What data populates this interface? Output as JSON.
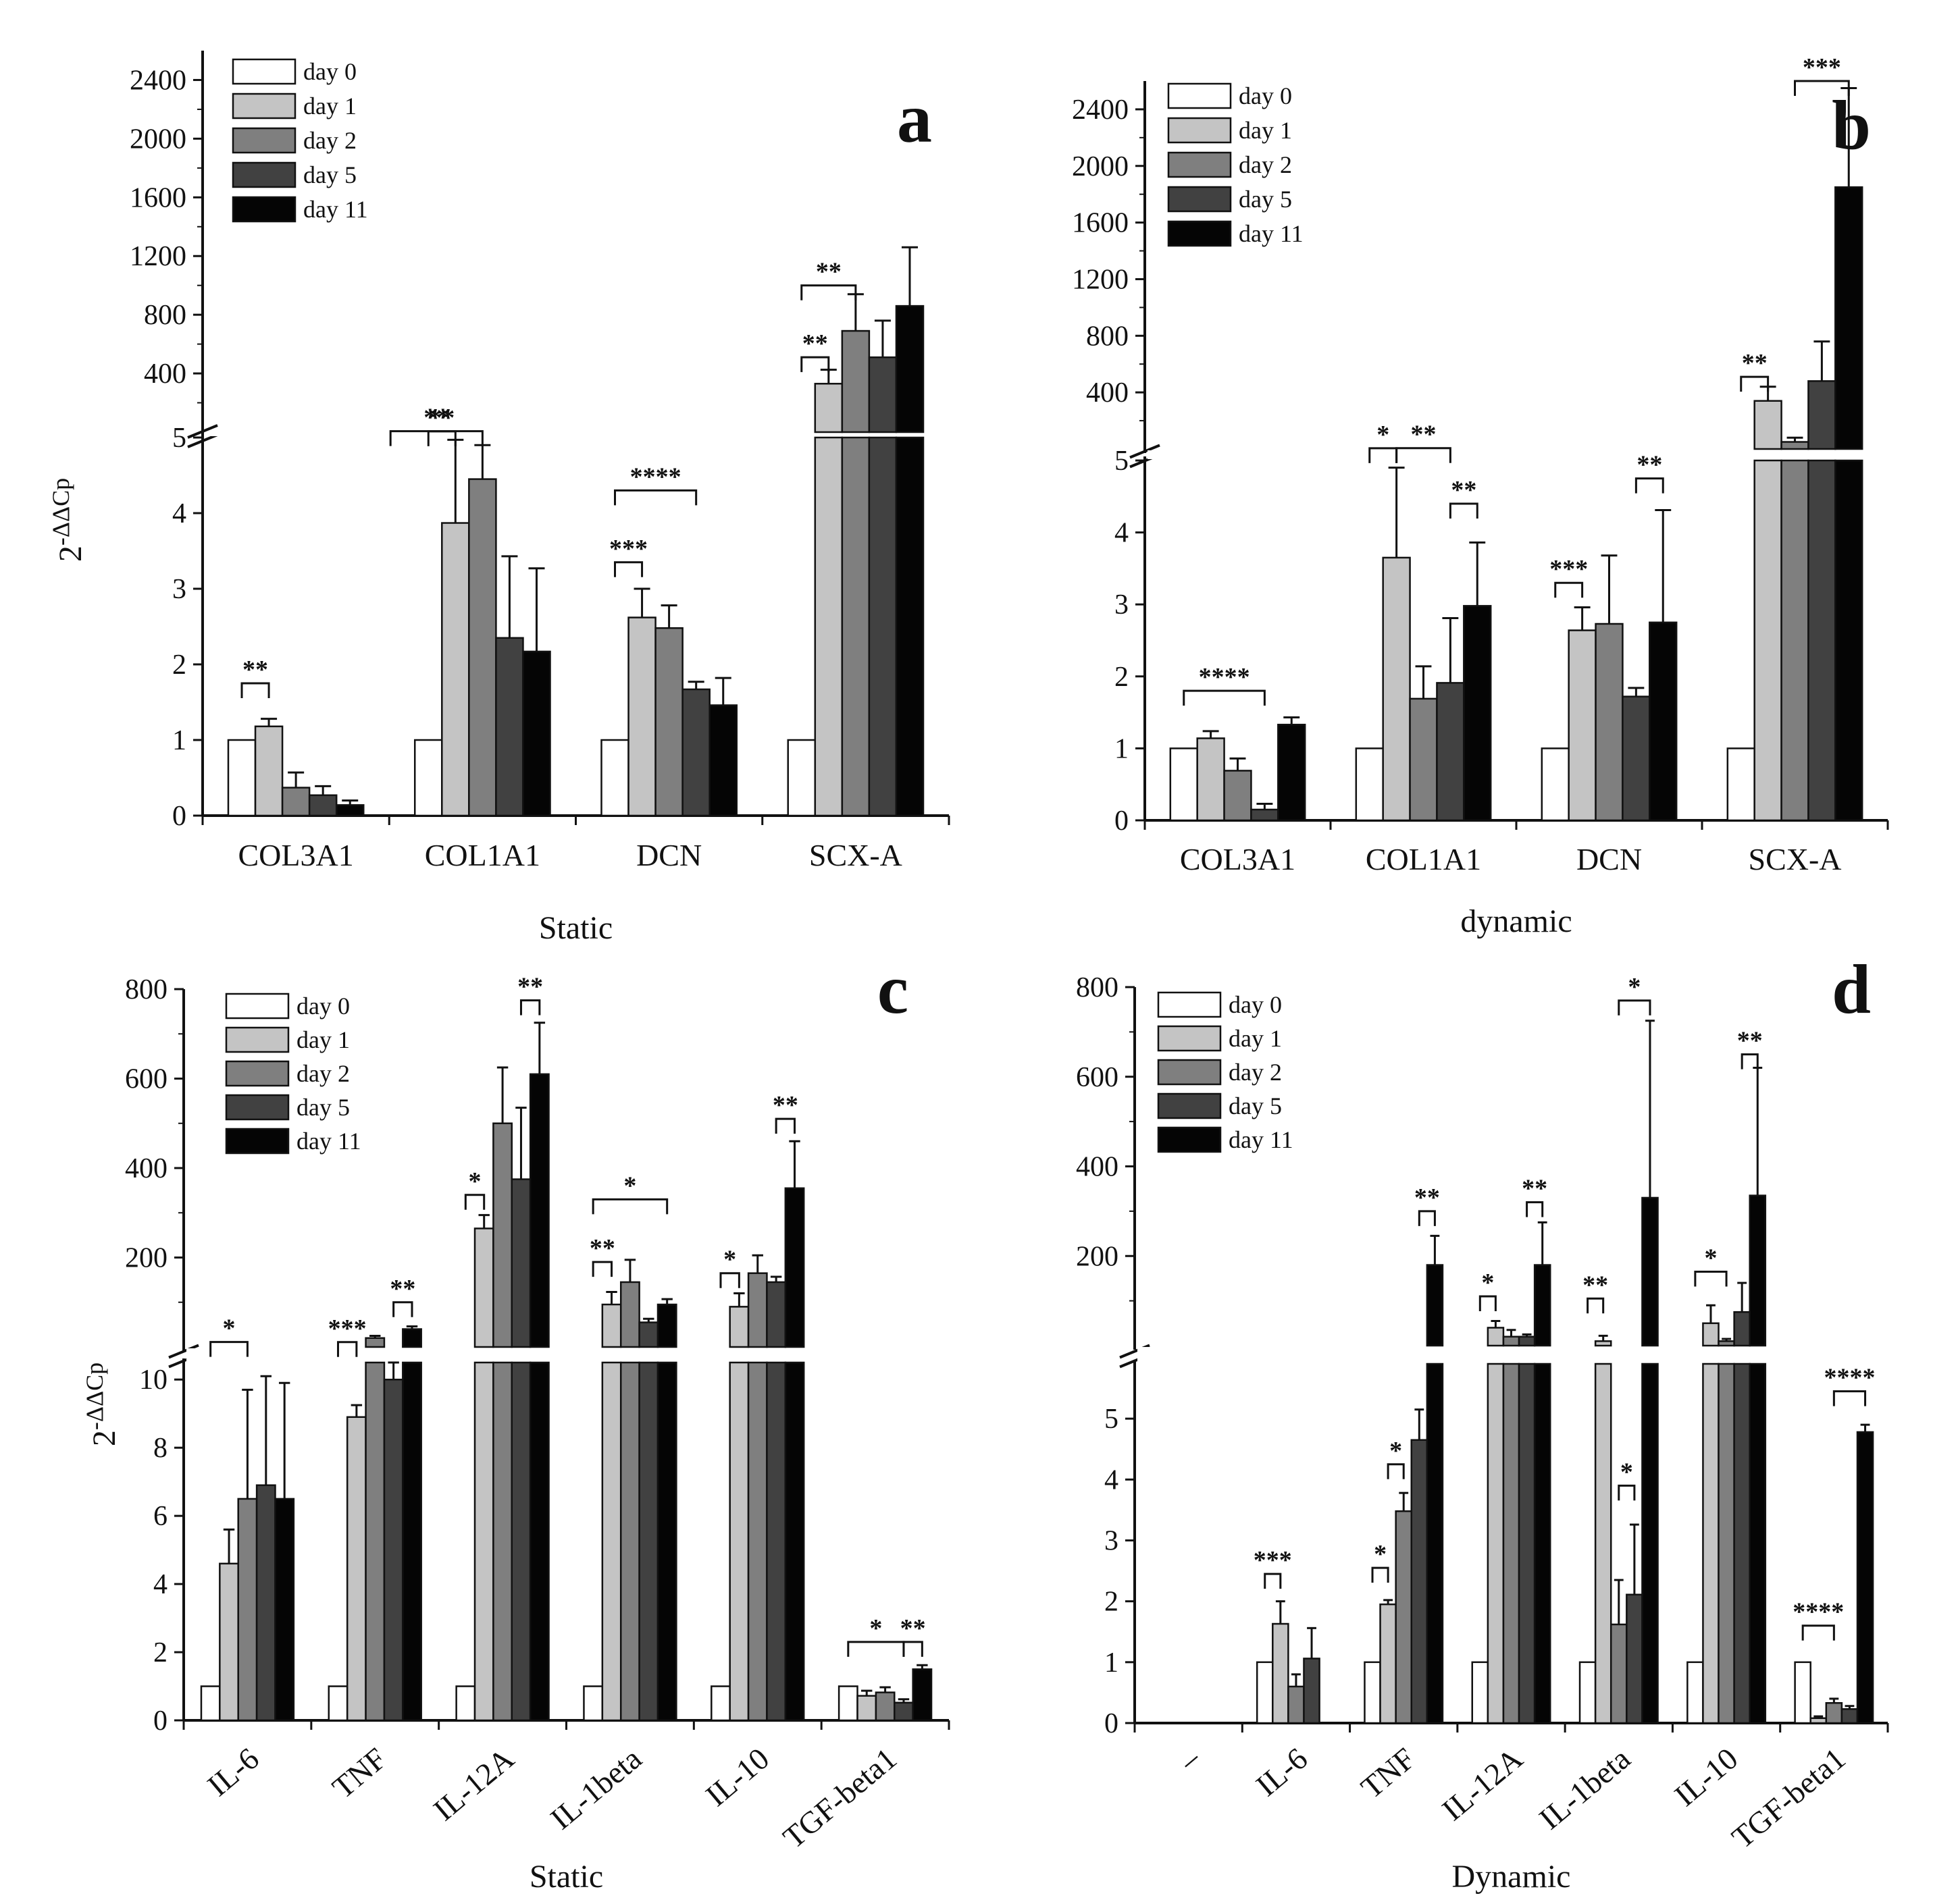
{
  "colors": {
    "day 0": "#ffffff",
    "day 1": "#c4c4c4",
    "day 2": "#7f7f7f",
    "day 5": "#414141",
    "day 11": "#050505"
  },
  "chart_data": [
    {
      "panel": "a",
      "type": "bar",
      "title": "",
      "xlabel": "Static",
      "ylabel": "2-ΔΔCp",
      "ylabel_base": "2",
      "ylabel_exp": "-ΔΔCp",
      "legend": [
        "day 0",
        "day 1",
        "day 2",
        "day 5",
        "day 11"
      ],
      "categories": [
        "COL3A1",
        "COL1A1",
        "DCN",
        "SCX-A"
      ],
      "lower_axis": {
        "ylim": [
          0,
          5
        ],
        "ticks": [
          0,
          1,
          2,
          3,
          4,
          5
        ]
      },
      "upper_axis": {
        "ylim": [
          0,
          2600
        ],
        "ticks": [
          400,
          800,
          1200,
          1600,
          2000,
          2400
        ]
      },
      "series": [
        {
          "name": "day 0",
          "values": [
            1,
            1,
            1,
            1
          ],
          "errors": [
            0,
            0,
            0,
            0
          ]
        },
        {
          "name": "day 1",
          "values": [
            1.18,
            3.87,
            2.62,
            330
          ],
          "errors": [
            0.1,
            1.1,
            0.38,
            95
          ]
        },
        {
          "name": "day 2",
          "values": [
            0.37,
            4.45,
            2.48,
            690
          ],
          "errors": [
            0.2,
            0.45,
            0.3,
            250
          ]
        },
        {
          "name": "day 5",
          "values": [
            0.27,
            2.35,
            1.67,
            510
          ],
          "errors": [
            0.12,
            1.08,
            0.1,
            250
          ]
        },
        {
          "name": "day 11",
          "values": [
            0.14,
            2.17,
            1.46,
            860
          ],
          "errors": [
            0.06,
            1.1,
            0.36,
            400
          ]
        }
      ],
      "significance": [
        {
          "label": "**",
          "category": "COL3A1",
          "from": 0,
          "to": 1,
          "value": 1.75
        },
        {
          "label": "**",
          "category": "COL1A1",
          "from": 0,
          "to": 1,
          "value": 5.3
        },
        {
          "label": "**",
          "category": "COL1A1",
          "from": -1,
          "to": 2,
          "value": 6.05
        },
        {
          "label": "***",
          "category": "DCN",
          "from": 0,
          "to": 1,
          "value": 3.35
        },
        {
          "label": "****",
          "category": "DCN",
          "from": 0,
          "to": 3,
          "value": 4.3
        },
        {
          "label": "**",
          "category": "SCX-A",
          "from": 0,
          "to": 1,
          "value": 510
        },
        {
          "label": "**",
          "category": "SCX-A",
          "from": 0,
          "to": 2,
          "value": 1000
        }
      ]
    },
    {
      "panel": "b",
      "type": "bar",
      "title": "",
      "xlabel": "dynamic",
      "ylabel": "2-ΔΔCp",
      "ylabel_base": "2",
      "ylabel_exp": "-ΔΔCp",
      "legend": [
        "day 0",
        "day 1",
        "day 2",
        "day 5",
        "day 11"
      ],
      "categories": [
        "COL3A1",
        "COL1A1",
        "DCN",
        "SCX-A"
      ],
      "lower_axis": {
        "ylim": [
          0,
          5
        ],
        "ticks": [
          0,
          1,
          2,
          3,
          4,
          5
        ]
      },
      "upper_axis": {
        "ylim": [
          0,
          2600
        ],
        "ticks": [
          400,
          800,
          1200,
          1600,
          2000,
          2400
        ]
      },
      "series": [
        {
          "name": "day 0",
          "values": [
            1,
            1,
            1,
            1
          ],
          "errors": [
            0,
            0,
            0,
            0
          ]
        },
        {
          "name": "day 1",
          "values": [
            1.14,
            3.65,
            2.64,
            340
          ],
          "errors": [
            0.1,
            1.25,
            0.32,
            100
          ]
        },
        {
          "name": "day 2",
          "values": [
            0.69,
            1.69,
            2.73,
            50
          ],
          "errors": [
            0.17,
            0.45,
            0.95,
            30
          ]
        },
        {
          "name": "day 5",
          "values": [
            0.15,
            1.91,
            1.72,
            480
          ],
          "errors": [
            0.08,
            0.9,
            0.12,
            280
          ]
        },
        {
          "name": "day 11",
          "values": [
            1.33,
            2.98,
            2.75,
            1850
          ],
          "errors": [
            0.1,
            0.88,
            1.56,
            700
          ]
        }
      ],
      "significance": [
        {
          "label": "****",
          "category": "COL3A1",
          "from": 0,
          "to": 3,
          "value": 1.8
        },
        {
          "label": "*",
          "category": "COL1A1",
          "from": 0,
          "to": 1,
          "value": 5.45
        },
        {
          "label": "**",
          "category": "COL1A1",
          "from": 1,
          "to": 3,
          "value": 6.1
        },
        {
          "label": "**",
          "category": "COL1A1",
          "from": 3,
          "to": 4,
          "value": 4.4
        },
        {
          "label": "***",
          "category": "DCN",
          "from": 0,
          "to": 1,
          "value": 3.3
        },
        {
          "label": "**",
          "category": "DCN",
          "from": 3,
          "to": 4,
          "value": 4.75
        },
        {
          "label": "**",
          "category": "SCX-A",
          "from": 0,
          "to": 1,
          "value": 510
        },
        {
          "label": "***",
          "category": "SCX-A",
          "from": 2,
          "to": 4,
          "value": 2660
        }
      ]
    },
    {
      "panel": "c",
      "type": "bar",
      "title": "",
      "xlabel": "Static",
      "ylabel": "2-ΔΔCp",
      "ylabel_base": "2",
      "ylabel_exp": "-ΔΔCp",
      "legend": [
        "day 0",
        "day 1",
        "day 2",
        "day 5",
        "day 11"
      ],
      "categories": [
        "IL-6",
        "TNF",
        "IL-12A",
        "IL-1beta",
        "IL-10",
        "TGF-beta1"
      ],
      "lower_axis": {
        "ylim": [
          0,
          10.5
        ],
        "ticks": [
          0,
          2,
          4,
          6,
          8,
          10
        ]
      },
      "upper_axis": {
        "ylim": [
          0,
          800
        ],
        "ticks": [
          200,
          400,
          600,
          800
        ]
      },
      "series": [
        {
          "name": "day 0",
          "values": [
            1,
            1,
            1,
            1,
            1,
            1
          ],
          "errors": [
            0,
            0,
            0,
            0,
            0,
            0
          ]
        },
        {
          "name": "day 1",
          "values": [
            4.6,
            8.9,
            265,
            95,
            90,
            0.72
          ],
          "errors": [
            1.0,
            0.35,
            30,
            28,
            30,
            0.15
          ]
        },
        {
          "name": "day 2",
          "values": [
            6.5,
            20,
            500,
            145,
            165,
            0.82
          ],
          "errors": [
            3.2,
            5,
            125,
            50,
            40,
            0.15
          ]
        },
        {
          "name": "day 5",
          "values": [
            6.9,
            10,
            375,
            55,
            145,
            0.52
          ],
          "errors": [
            3.2,
            3,
            160,
            8,
            12,
            0.1
          ]
        },
        {
          "name": "day 11",
          "values": [
            6.5,
            40,
            610,
            95,
            355,
            1.5
          ],
          "errors": [
            3.4,
            6,
            115,
            12,
            105,
            0.12
          ]
        }
      ],
      "significance": [
        {
          "label": "*",
          "category": "IL-6",
          "from": 0,
          "to": 2,
          "value": 11.1
        },
        {
          "label": "***",
          "category": "TNF",
          "from": 0,
          "to": 1,
          "value": 10.9
        },
        {
          "label": "**",
          "category": "TNF",
          "from": 3,
          "to": 4,
          "value": 100
        },
        {
          "label": "*",
          "category": "IL-12A",
          "from": 0,
          "to": 1,
          "value": 340
        },
        {
          "label": "**",
          "category": "IL-12A",
          "from": 3,
          "to": 4,
          "value": 775
        },
        {
          "label": "**",
          "category": "IL-1beta",
          "from": 0,
          "to": 1,
          "value": 190
        },
        {
          "label": "*",
          "category": "IL-1beta",
          "from": 0,
          "to": 4,
          "value": 330
        },
        {
          "label": "*",
          "category": "IL-10",
          "from": 0,
          "to": 1,
          "value": 165
        },
        {
          "label": "**",
          "category": "IL-10",
          "from": 3,
          "to": 4,
          "value": 510
        },
        {
          "label": "*",
          "category": "TGF-beta1",
          "from": 0,
          "to": 3,
          "value": 2.3
        },
        {
          "label": "**",
          "category": "TGF-beta1",
          "from": 3,
          "to": 4,
          "value": 2.3
        }
      ]
    },
    {
      "panel": "d",
      "type": "bar",
      "title": "",
      "xlabel": "Dynamic",
      "ylabel": "",
      "legend": [
        "day 0",
        "day 1",
        "day 2",
        "day 5",
        "day 11"
      ],
      "categories": [
        "–",
        "IL-6",
        "TNF",
        "IL-12A",
        "IL-1beta",
        "IL-10",
        "TGF-beta1"
      ],
      "lower_axis": {
        "ylim": [
          0,
          5.9
        ],
        "ticks": [
          0,
          1,
          2,
          3,
          4,
          5
        ]
      },
      "upper_axis": {
        "ylim": [
          0,
          800
        ],
        "ticks": [
          200,
          400,
          600,
          800
        ]
      },
      "series": [
        {
          "name": "day 0",
          "values": [
            null,
            1,
            1,
            1,
            1,
            1,
            1
          ],
          "errors": [
            0,
            0,
            0,
            0,
            0,
            0,
            0
          ]
        },
        {
          "name": "day 1",
          "values": [
            null,
            1.63,
            1.95,
            40,
            10,
            50,
            0.08
          ],
          "errors": [
            0,
            0.37,
            0.07,
            15,
            12,
            40,
            0.03
          ]
        },
        {
          "name": "day 2",
          "values": [
            null,
            0.6,
            3.48,
            20,
            1.62,
            10,
            0.33
          ],
          "errors": [
            0,
            0.2,
            0.3,
            15,
            0.73,
            5,
            0.07
          ]
        },
        {
          "name": "day 5",
          "values": [
            null,
            1.06,
            4.65,
            20,
            2.11,
            75,
            0.23
          ],
          "errors": [
            0,
            0.5,
            0.5,
            5,
            1.15,
            65,
            0.05
          ]
        },
        {
          "name": "day 11",
          "values": [
            null,
            null,
            180,
            180,
            330,
            335,
            4.78
          ],
          "errors": [
            0,
            0,
            65,
            95,
            395,
            285,
            0.12
          ]
        }
      ],
      "significance": [
        {
          "label": "***",
          "category": "IL-6",
          "from": 0,
          "to": 1,
          "value": 2.45
        },
        {
          "label": "*",
          "category": "TNF",
          "from": 0,
          "to": 1,
          "value": 2.55
        },
        {
          "label": "*",
          "category": "TNF",
          "from": 1,
          "to": 2,
          "value": 4.25
        },
        {
          "label": "**",
          "category": "TNF",
          "from": 3,
          "to": 4,
          "value": 300
        },
        {
          "label": "*",
          "category": "IL-12A",
          "from": 0,
          "to": 1,
          "value": 110
        },
        {
          "label": "**",
          "category": "IL-12A",
          "from": 3,
          "to": 4,
          "value": 320
        },
        {
          "label": "**",
          "category": "IL-1beta",
          "from": 0,
          "to": 1,
          "value": 105
        },
        {
          "label": "*",
          "category": "IL-1beta",
          "from": 2,
          "to": 3,
          "value": 3.9
        },
        {
          "label": "*",
          "category": "IL-1beta",
          "from": 2,
          "to": 4,
          "value": 770
        },
        {
          "label": "*",
          "category": "IL-10",
          "from": 0,
          "to": 2,
          "value": 165
        },
        {
          "label": "**",
          "category": "IL-10",
          "from": 3,
          "to": 4,
          "value": 650
        },
        {
          "label": "****",
          "category": "TGF-beta1",
          "from": 0,
          "to": 2,
          "value": 1.6
        },
        {
          "label": "****",
          "category": "TGF-beta1",
          "from": 2,
          "to": 4,
          "value": 5.45
        }
      ]
    }
  ]
}
